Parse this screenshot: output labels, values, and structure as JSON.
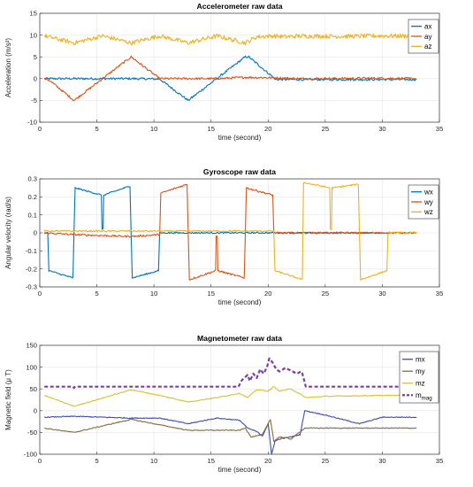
{
  "chart_data": [
    {
      "type": "line",
      "title": "Accelerometer raw data",
      "xlabel": "time (second)",
      "ylabel": "Acceleration (m/s²)",
      "xlim": [
        0,
        35
      ],
      "ylim": [
        -10,
        15
      ],
      "xticks": [
        0,
        5,
        10,
        15,
        20,
        25,
        30,
        35
      ],
      "yticks": [
        -10,
        -5,
        0,
        5,
        10,
        15
      ],
      "xtick_labels": [
        "0",
        "5",
        "10",
        "15",
        "20",
        "25",
        "30",
        "35"
      ],
      "ytick_labels": [
        "-10",
        "-5",
        "0",
        "5",
        "10",
        "15"
      ],
      "grid": true,
      "legend": "top-right",
      "series": [
        {
          "name": "ax",
          "color": "#0072BD",
          "noise": 0.25,
          "x": [
            0.4,
            3.0,
            7.6,
            8.2,
            10.5,
            13.0,
            18.0,
            18.3,
            20.5,
            20.6,
            23.0,
            30.0,
            33.0
          ],
          "y": [
            0.0,
            0.0,
            0.0,
            0.0,
            -0.1,
            -5.0,
            5.0,
            5.0,
            0.2,
            -0.2,
            -0.2,
            -0.2,
            -0.2
          ]
        },
        {
          "name": "ay",
          "color": "#D95319",
          "noise": 0.25,
          "x": [
            0.4,
            0.8,
            3.0,
            8.0,
            10.5,
            15.5,
            18.0,
            20.5,
            23.0,
            30.0,
            33.0
          ],
          "y": [
            0.0,
            -0.3,
            -5.0,
            5.0,
            0.0,
            0.0,
            0.3,
            0.2,
            0.0,
            0.1,
            0.0
          ],
          "segments": [
            [
              0.6,
              -0.2,
              1.6,
              -0.2
            ],
            [
              1.6,
              -0.3,
              3.0,
              -5.0
            ]
          ]
        },
        {
          "name": "az",
          "color": "#EDB120",
          "noise": 0.5,
          "x": [
            0.4,
            3.0,
            5.5,
            8.0,
            10.5,
            13.0,
            15.5,
            18.0,
            19.0,
            20.5,
            21.5,
            23.0,
            26.0,
            30.0,
            33.0
          ],
          "y": [
            9.8,
            8.2,
            9.8,
            8.2,
            9.8,
            8.2,
            9.8,
            8.2,
            9.6,
            9.8,
            9.6,
            9.8,
            9.7,
            9.8,
            9.8
          ]
        }
      ]
    },
    {
      "type": "line",
      "title": "Gyroscope raw data",
      "xlabel": "time (second)",
      "ylabel": "Angular velocity (rad/s)",
      "xlim": [
        0,
        35
      ],
      "ylim": [
        -0.3,
        0.3
      ],
      "xticks": [
        0,
        5,
        10,
        15,
        20,
        25,
        30,
        35
      ],
      "yticks": [
        -0.3,
        -0.2,
        -0.1,
        0,
        0.1,
        0.2,
        0.3
      ],
      "xtick_labels": [
        "0",
        "5",
        "10",
        "15",
        "20",
        "25",
        "30",
        "35"
      ],
      "ytick_labels": [
        "-0.3",
        "-0.2",
        "-0.1",
        "0",
        "0.1",
        "0.2",
        "0.3"
      ],
      "grid": true,
      "legend": "top-right",
      "series": [
        {
          "name": "wx",
          "color": "#0072BD",
          "noise": 0.004,
          "x": [
            0.4,
            0.7,
            0.8,
            2.9,
            3.0,
            3.1,
            5.4,
            5.45,
            5.55,
            5.6,
            7.9,
            8.0,
            8.1,
            10.4,
            10.5,
            10.6,
            13.0,
            15.4,
            15.45,
            15.55,
            15.6,
            18.0,
            20.5,
            33.0
          ],
          "y": [
            0.0,
            0.0,
            -0.21,
            -0.25,
            0.0,
            0.25,
            0.21,
            0.02,
            0.02,
            0.21,
            0.26,
            0.0,
            -0.25,
            -0.21,
            0.0,
            0.0,
            0.0,
            0.0,
            0.0,
            0.0,
            0.0,
            0.0,
            0.0,
            0.0
          ]
        },
        {
          "name": "wy",
          "color": "#D95319",
          "noise": 0.005,
          "x": [
            0.4,
            3.0,
            3.1,
            8.0,
            10.5,
            10.6,
            12.9,
            13.0,
            13.1,
            15.4,
            15.45,
            15.55,
            15.6,
            17.9,
            18.0,
            18.1,
            20.4,
            20.5,
            33.0
          ],
          "y": [
            0.0,
            -0.01,
            -0.01,
            -0.02,
            -0.01,
            0.22,
            0.27,
            0.0,
            -0.26,
            -0.21,
            -0.02,
            -0.02,
            -0.21,
            -0.25,
            0.0,
            0.25,
            0.21,
            0.0,
            0.0
          ]
        },
        {
          "name": "wz",
          "color": "#EDB120",
          "noise": 0.004,
          "x": [
            0.4,
            20.5,
            20.6,
            23.0,
            23.1,
            25.4,
            25.45,
            25.55,
            25.6,
            27.9,
            28.0,
            28.1,
            30.4,
            30.5,
            33.0
          ],
          "y": [
            0.01,
            0.01,
            -0.21,
            -0.26,
            0.28,
            0.25,
            0.02,
            0.02,
            0.25,
            0.27,
            0.0,
            -0.26,
            -0.21,
            0.0,
            0.0
          ]
        }
      ]
    },
    {
      "type": "line",
      "title": "Magnetometer raw data",
      "xlabel": "time (second)",
      "ylabel": "Magnetic field (μ T)",
      "xlim": [
        0,
        35
      ],
      "ylim": [
        -100,
        150
      ],
      "xticks": [
        0,
        5,
        10,
        15,
        20,
        25,
        30,
        35
      ],
      "yticks": [
        -100,
        -50,
        0,
        50,
        100,
        150
      ],
      "xtick_labels": [
        "0",
        "5",
        "10",
        "15",
        "20",
        "25",
        "30",
        "35"
      ],
      "ytick_labels": [
        "-100",
        "-50",
        "0",
        "50",
        "100",
        "150"
      ],
      "grid": true,
      "legend": "top-right",
      "series": [
        {
          "name": "mx",
          "color": "#3B4FA8",
          "noise": 1.0,
          "x": [
            0.4,
            3.0,
            8.0,
            10.5,
            13.0,
            15.5,
            17.5,
            18.2,
            19.0,
            19.5,
            20.0,
            20.3,
            20.6,
            21.0,
            22.0,
            22.8,
            23.2,
            25.0,
            28.0,
            30.0,
            33.0
          ],
          "y": [
            -15,
            -13,
            -17,
            -17,
            -30,
            -17,
            -22,
            -40,
            -48,
            -58,
            -30,
            -100,
            -70,
            -65,
            -60,
            -55,
            0,
            -10,
            -30,
            -15,
            -15
          ]
        },
        {
          "name": "my",
          "color": "#8B6A3A",
          "noise": 1.0,
          "x": [
            0.4,
            3.0,
            8.0,
            13.0,
            15.5,
            17.5,
            18.0,
            18.5,
            19.5,
            20.2,
            20.5,
            21.0,
            22.0,
            23.2,
            25.0,
            30.0,
            33.0
          ],
          "y": [
            -40,
            -50,
            -20,
            -45,
            -45,
            -45,
            -40,
            -60,
            -55,
            -20,
            -70,
            -60,
            -65,
            -40,
            -40,
            -40,
            -40
          ]
        },
        {
          "name": "mz",
          "color": "#D4C233",
          "noise": 1.0,
          "x": [
            0.4,
            3.0,
            8.0,
            10.5,
            13.0,
            15.5,
            17.5,
            18.2,
            19.0,
            20.0,
            20.5,
            21.0,
            22.0,
            23.0,
            23.3,
            25.0,
            30.0,
            33.0
          ],
          "y": [
            35,
            10,
            48,
            35,
            20,
            30,
            40,
            30,
            48,
            45,
            55,
            45,
            50,
            35,
            30,
            33,
            35,
            35
          ]
        },
        {
          "name": "m_mag",
          "color": "#7B3FA0",
          "dashed": true,
          "noise": 0.0,
          "x": [
            0.4,
            2.9,
            3.0,
            3.1,
            17.4,
            17.7,
            18.2,
            18.4,
            18.7,
            19.0,
            19.3,
            19.6,
            19.9,
            20.1,
            20.4,
            20.7,
            21.0,
            21.5,
            22.0,
            22.5,
            22.9,
            23.0,
            23.3,
            33.0
          ],
          "y": [
            55,
            55,
            52,
            55,
            55,
            70,
            82,
            68,
            85,
            75,
            95,
            85,
            100,
            120,
            110,
            95,
            90,
            98,
            92,
            85,
            90,
            85,
            55,
            55
          ]
        }
      ]
    }
  ],
  "legend_mmag": {
    "base": "m",
    "sub": "mag"
  }
}
